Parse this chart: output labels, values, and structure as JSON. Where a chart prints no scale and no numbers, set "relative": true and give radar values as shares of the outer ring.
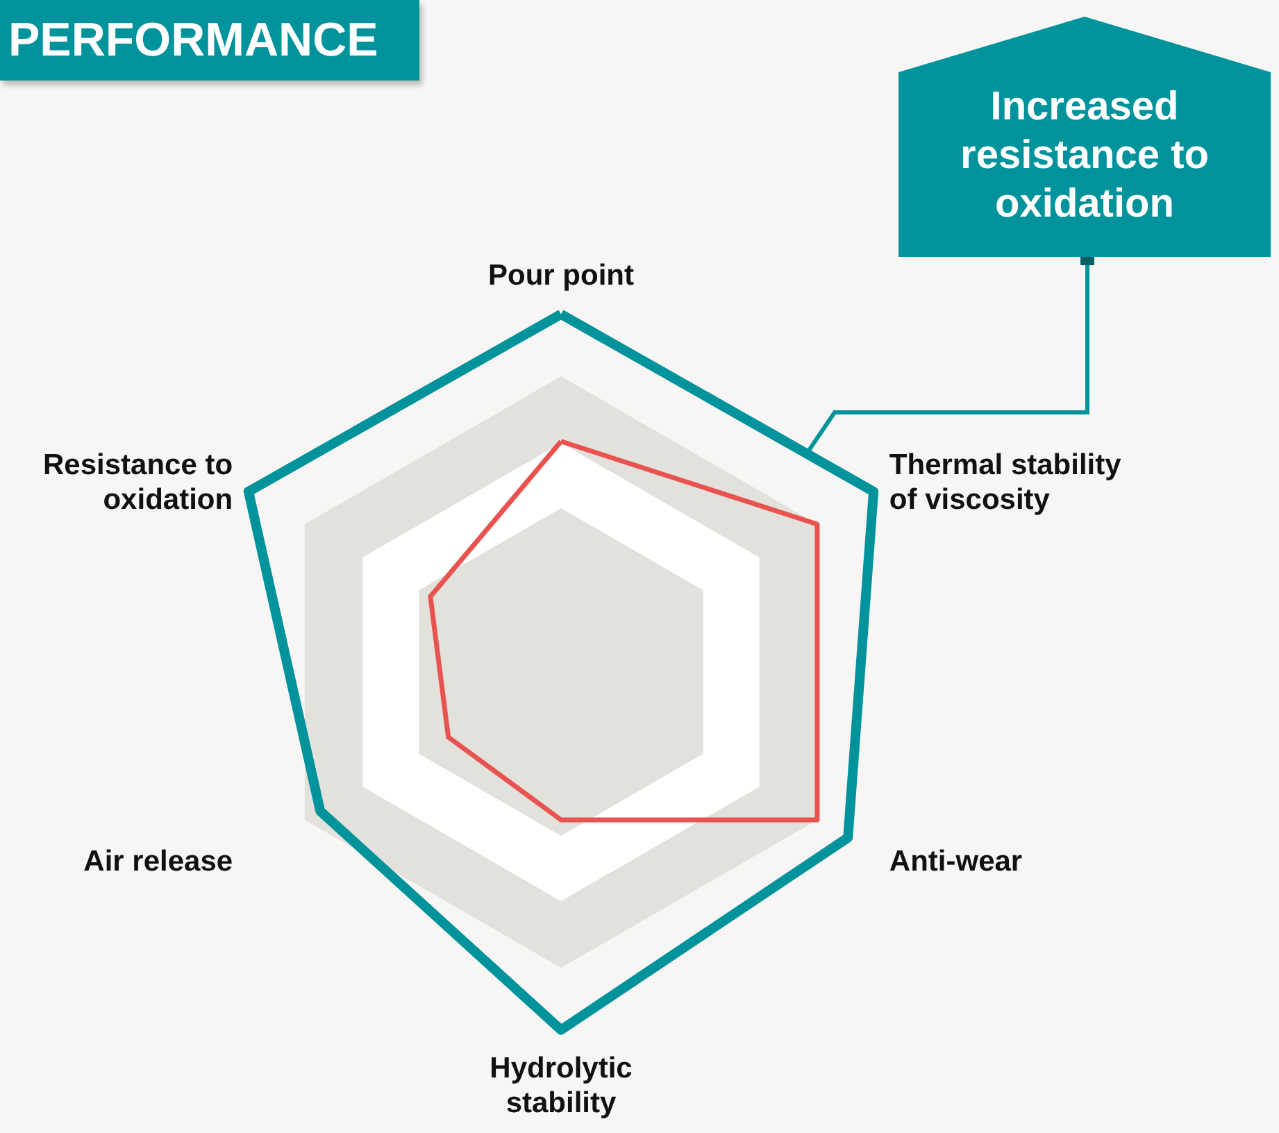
{
  "chart_data": {
    "type": "radar",
    "title": "PERFORMANCE",
    "relative": true,
    "categories": [
      "Pour point",
      "Thermal stability of viscosity",
      "Anti-wear",
      "Hydrolytic stability",
      "Air release",
      "Resistance to oxidation"
    ],
    "series": [
      {
        "color": "#00939c",
        "values": [
          1.21,
          1.22,
          1.12,
          1.21,
          0.94,
          1.22
        ]
      },
      {
        "color": "#e8534f",
        "values": [
          0.78,
          1,
          1,
          0.5,
          0.44,
          0.51
        ]
      }
    ],
    "annotations": [
      "Increased resistance to oxidation"
    ]
  }
}
